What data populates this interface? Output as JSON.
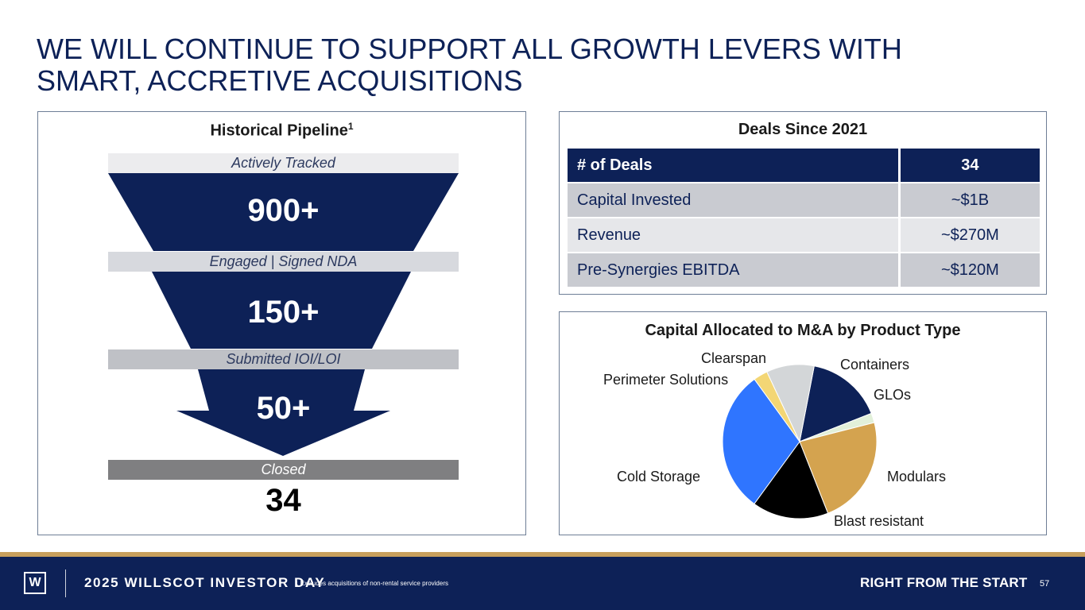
{
  "title": {
    "line1": "WE WILL CONTINUE TO SUPPORT ALL GROWTH LEVERS WITH",
    "line2": "SMART, ACCRETIVE ACQUISITIONS"
  },
  "pipeline": {
    "heading": "Historical Pipeline",
    "heading_sup": "1",
    "stages": [
      {
        "label": "Actively Tracked",
        "value": "900+"
      },
      {
        "label": "Engaged | Signed NDA",
        "value": "150+"
      },
      {
        "label": "Submitted IOI/LOI",
        "value": "50+"
      },
      {
        "label": "Closed",
        "value": "34"
      }
    ]
  },
  "deals": {
    "heading": "Deals Since 2021",
    "rows": [
      {
        "label": "# of Deals",
        "value": "34"
      },
      {
        "label": "Capital Invested",
        "value": "~$1B"
      },
      {
        "label": "Revenue",
        "value": "~$270M"
      },
      {
        "label": "Pre-Synergies EBITDA",
        "value": "~$120M"
      }
    ]
  },
  "chart_data": {
    "type": "pie",
    "title": "Capital Allocated to M&A by Product Type",
    "slices": [
      {
        "name": "Containers",
        "value": 16,
        "color": "#0d2157"
      },
      {
        "name": "GLOs",
        "value": 2,
        "color": "#e2f0d9"
      },
      {
        "name": "Modulars",
        "value": 23,
        "color": "#d4a34f"
      },
      {
        "name": "Blast resistant",
        "value": 16,
        "color": "#000000"
      },
      {
        "name": "Cold Storage",
        "value": 30,
        "color": "#2f75ff"
      },
      {
        "name": "Perimeter Solutions",
        "value": 3,
        "color": "#f3d675"
      },
      {
        "name": "Clearspan",
        "value": 10,
        "color": "#d3d6d8"
      }
    ]
  },
  "footer": {
    "logo_letter": "W",
    "event_name": "2025 WILLSCOT INVESTOR DAY",
    "footnote": "1 Excludes acquisitions of non-rental service providers",
    "tagline": "RIGHT FROM THE START",
    "page_number": "57"
  }
}
